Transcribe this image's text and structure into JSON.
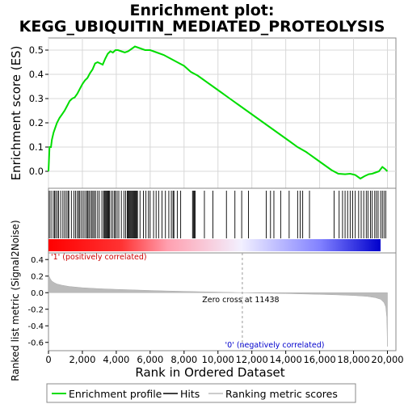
{
  "chart_data": {
    "type": "line",
    "title_lines": [
      "Enrichment plot:",
      "KEGG_UBIQUITIN_MEDIATED_PROTEOLYSIS"
    ],
    "xlabel": "Rank in Ordered Dataset",
    "xlim": [
      0,
      20500
    ],
    "x_ticks": [
      0,
      2000,
      4000,
      6000,
      8000,
      10000,
      12000,
      14000,
      16000,
      18000,
      20000
    ],
    "x_tick_labels": [
      "0",
      "2,000",
      "4,000",
      "6,000",
      "8,000",
      "10,000",
      "12,000",
      "14,000",
      "16,000",
      "18,000",
      "20,000"
    ],
    "enrichment_panel": {
      "ylabel": "Enrichment score (ES)",
      "ylim": [
        -0.07,
        0.55
      ],
      "y_ticks": [
        0.0,
        0.1,
        0.2,
        0.3,
        0.4,
        0.5
      ],
      "y_tick_labels": [
        "0.0",
        "0.1",
        "0.2",
        "0.3",
        "0.4",
        "0.5"
      ],
      "grid": true,
      "line_color": "#00dd00",
      "es_points": [
        [
          0,
          0.0
        ],
        [
          60,
          0.1
        ],
        [
          150,
          0.1
        ],
        [
          200,
          0.13
        ],
        [
          300,
          0.16
        ],
        [
          400,
          0.18
        ],
        [
          500,
          0.2
        ],
        [
          650,
          0.22
        ],
        [
          800,
          0.235
        ],
        [
          950,
          0.25
        ],
        [
          1100,
          0.27
        ],
        [
          1250,
          0.29
        ],
        [
          1400,
          0.3
        ],
        [
          1550,
          0.305
        ],
        [
          1700,
          0.32
        ],
        [
          1850,
          0.34
        ],
        [
          2000,
          0.36
        ],
        [
          2150,
          0.375
        ],
        [
          2300,
          0.385
        ],
        [
          2450,
          0.405
        ],
        [
          2600,
          0.42
        ],
        [
          2750,
          0.445
        ],
        [
          2900,
          0.45
        ],
        [
          3050,
          0.445
        ],
        [
          3200,
          0.44
        ],
        [
          3350,
          0.465
        ],
        [
          3500,
          0.485
        ],
        [
          3650,
          0.495
        ],
        [
          3800,
          0.49
        ],
        [
          3950,
          0.5
        ],
        [
          4100,
          0.5
        ],
        [
          4300,
          0.495
        ],
        [
          4500,
          0.49
        ],
        [
          4700,
          0.495
        ],
        [
          4900,
          0.505
        ],
        [
          5100,
          0.515
        ],
        [
          5300,
          0.51
        ],
        [
          5500,
          0.505
        ],
        [
          5700,
          0.5
        ],
        [
          6000,
          0.5
        ],
        [
          6400,
          0.49
        ],
        [
          6800,
          0.48
        ],
        [
          7200,
          0.465
        ],
        [
          7600,
          0.45
        ],
        [
          8000,
          0.435
        ],
        [
          8400,
          0.41
        ],
        [
          8800,
          0.395
        ],
        [
          9200,
          0.375
        ],
        [
          9700,
          0.35
        ],
        [
          10200,
          0.325
        ],
        [
          10700,
          0.3
        ],
        [
          11200,
          0.275
        ],
        [
          11700,
          0.25
        ],
        [
          12200,
          0.225
        ],
        [
          12700,
          0.2
        ],
        [
          13200,
          0.175
        ],
        [
          13700,
          0.15
        ],
        [
          14200,
          0.125
        ],
        [
          14700,
          0.1
        ],
        [
          15200,
          0.08
        ],
        [
          15700,
          0.055
        ],
        [
          16200,
          0.03
        ],
        [
          16700,
          0.005
        ],
        [
          17100,
          -0.01
        ],
        [
          17500,
          -0.012
        ],
        [
          17800,
          -0.01
        ],
        [
          18100,
          -0.015
        ],
        [
          18400,
          -0.03
        ],
        [
          18650,
          -0.02
        ],
        [
          18900,
          -0.012
        ],
        [
          19100,
          -0.01
        ],
        [
          19300,
          -0.005
        ],
        [
          19500,
          0.0
        ],
        [
          19700,
          0.018
        ],
        [
          19850,
          0.01
        ],
        [
          20000,
          0.0
        ]
      ]
    },
    "hits_panel": {
      "hit_positions": [
        50,
        150,
        280,
        360,
        430,
        520,
        600,
        720,
        850,
        950,
        1050,
        1150,
        1200,
        1350,
        1500,
        1600,
        1700,
        1780,
        1850,
        1950,
        2050,
        2150,
        2250,
        2300,
        2380,
        2450,
        2550,
        2620,
        2700,
        2780,
        2900,
        3000,
        3150,
        3250,
        3300,
        3350,
        3400,
        3450,
        3500,
        3550,
        3600,
        3700,
        3800,
        3900,
        3950,
        4050,
        4150,
        4300,
        4450,
        4550,
        4650,
        4700,
        4750,
        4800,
        4850,
        4900,
        4950,
        5000,
        5050,
        5100,
        5150,
        5200,
        5250,
        5400,
        5600,
        5750,
        5900,
        6000,
        6200,
        6350,
        6500,
        6700,
        6900,
        7100,
        7250,
        7350,
        7400,
        7600,
        7800,
        8500,
        8550,
        8600,
        8650,
        9200,
        9700,
        10500,
        11000,
        11400,
        11800,
        12850,
        13100,
        13300,
        13700,
        14200,
        14700,
        14850,
        15000,
        15400,
        16850,
        17150,
        17350,
        17500,
        17650,
        17800,
        17950,
        18100,
        18300,
        18450,
        18600,
        18750,
        18850,
        19000,
        19100,
        19250,
        19350,
        19450,
        19600,
        19700,
        19800,
        19900
      ],
      "heatmap_stops": [
        "#ff0000",
        "#ff9aa2",
        "#f0f0ff",
        "#7070ff",
        "#0000cc"
      ]
    },
    "metric_panel": {
      "ylabel": "Ranked list metric (Signal2Noise)",
      "ylim": [
        -0.7,
        0.48
      ],
      "y_ticks": [
        0.4,
        0.2,
        0.0,
        -0.2,
        -0.4,
        -0.6
      ],
      "y_tick_labels": [
        "0.4",
        "0.2",
        "0.0",
        "-0.2",
        "-0.4",
        "-0.6"
      ],
      "zero_cross": 11438,
      "zero_cross_label": "Zero cross at 11438",
      "positive_label": "'1' (positively correlated)",
      "negative_label": "'0' (negatively correlated)",
      "metric_points": [
        [
          0,
          0.24
        ],
        [
          40,
          0.2
        ],
        [
          100,
          0.17
        ],
        [
          200,
          0.14
        ],
        [
          350,
          0.12
        ],
        [
          500,
          0.105
        ],
        [
          800,
          0.09
        ],
        [
          1200,
          0.075
        ],
        [
          2000,
          0.06
        ],
        [
          3000,
          0.048
        ],
        [
          4000,
          0.04
        ],
        [
          5000,
          0.033
        ],
        [
          6000,
          0.027
        ],
        [
          7000,
          0.021
        ],
        [
          8000,
          0.016
        ],
        [
          9000,
          0.011
        ],
        [
          10000,
          0.007
        ],
        [
          11000,
          0.002
        ],
        [
          11438,
          0.0
        ],
        [
          12000,
          -0.003
        ],
        [
          13000,
          -0.007
        ],
        [
          14000,
          -0.011
        ],
        [
          15000,
          -0.015
        ],
        [
          16000,
          -0.02
        ],
        [
          17000,
          -0.026
        ],
        [
          18000,
          -0.034
        ],
        [
          18800,
          -0.045
        ],
        [
          19300,
          -0.06
        ],
        [
          19600,
          -0.08
        ],
        [
          19800,
          -0.12
        ],
        [
          19900,
          -0.17
        ],
        [
          19960,
          -0.3
        ],
        [
          20000,
          -0.65
        ]
      ]
    },
    "legend": {
      "entries": [
        {
          "label": "Enrichment profile",
          "color": "#00dd00"
        },
        {
          "label": "Hits",
          "color": "#000000"
        },
        {
          "label": "Ranking metric scores",
          "color": "#bbbbbb"
        }
      ]
    }
  }
}
